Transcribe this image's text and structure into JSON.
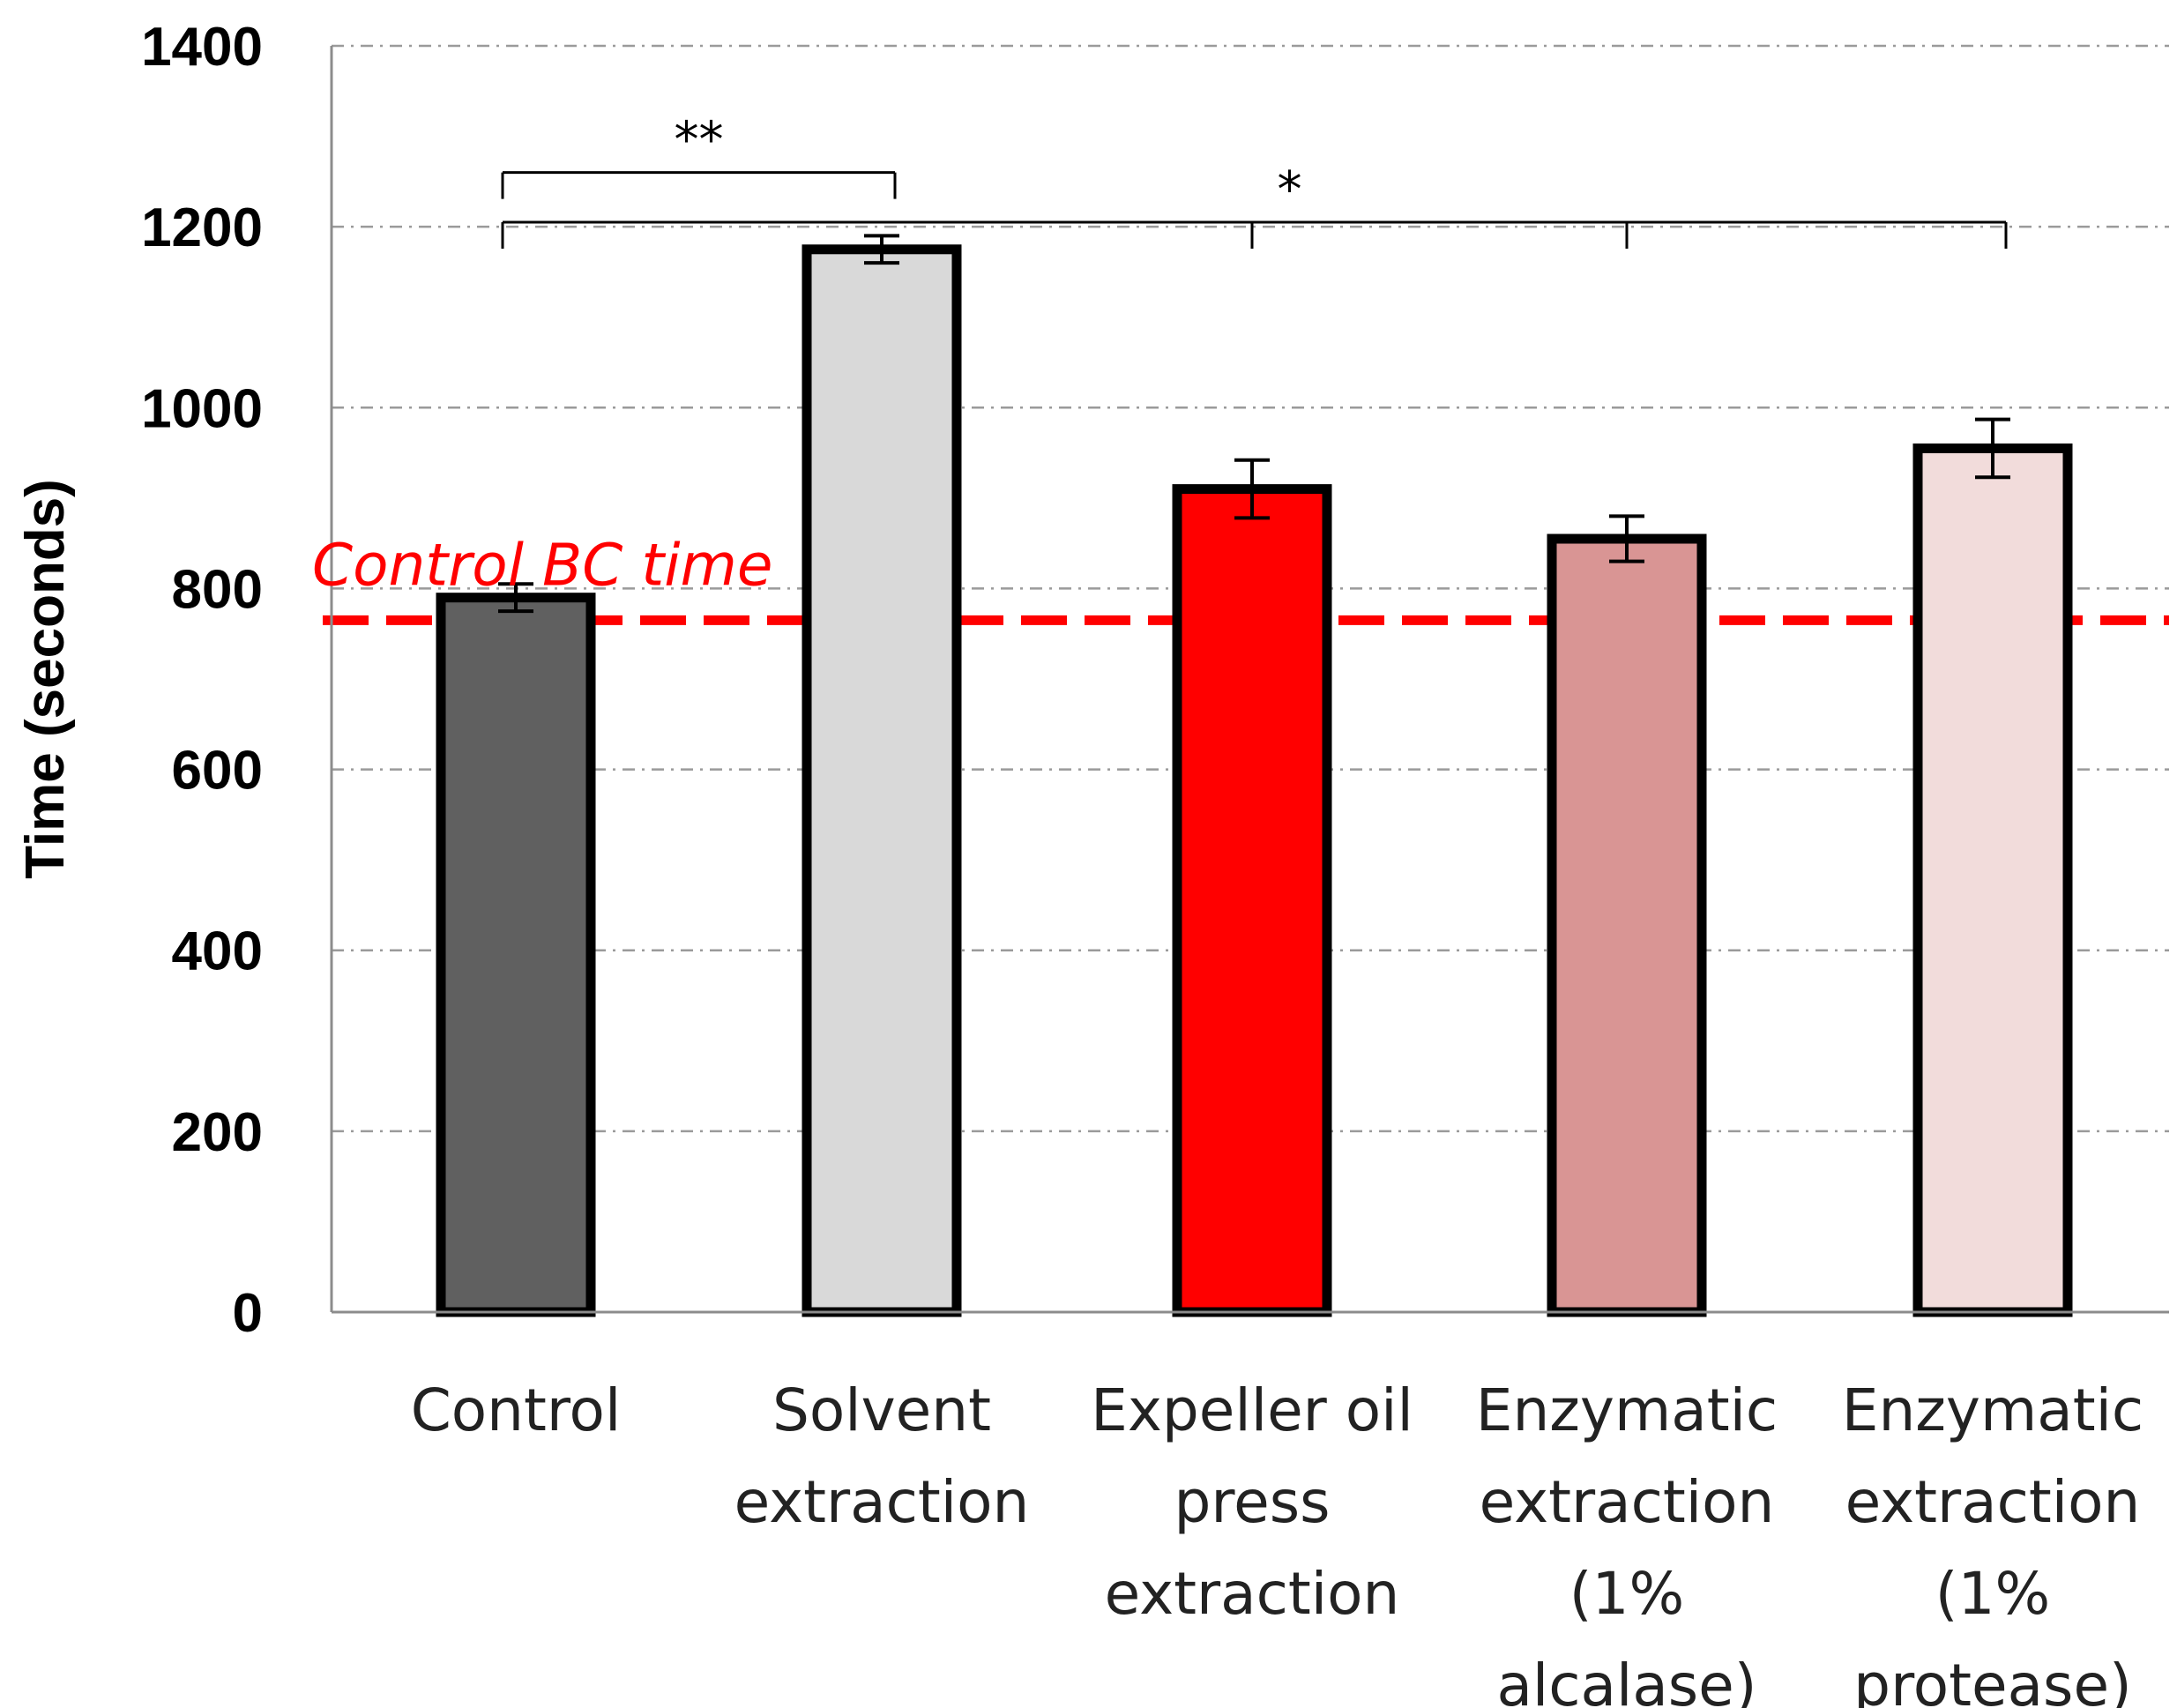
{
  "chart_data": {
    "type": "bar",
    "title": "",
    "xlabel": "",
    "ylabel": "Time (seconds)",
    "ylim": [
      0,
      1400
    ],
    "yticks": [
      0,
      200,
      400,
      600,
      800,
      1000,
      1200,
      1400
    ],
    "grid": true,
    "categories": [
      {
        "lines": [
          "Control"
        ]
      },
      {
        "lines": [
          "Solvent",
          "extraction"
        ]
      },
      {
        "lines": [
          "Expeller oil",
          "press",
          "extraction"
        ]
      },
      {
        "lines": [
          "Enzymatic",
          "extraction",
          "(1%",
          "alcalase)"
        ]
      },
      {
        "lines": [
          "Enzymatic",
          "extraction",
          "(1%",
          "protease)"
        ]
      }
    ],
    "values": [
      790,
      1175,
      910,
      855,
      955
    ],
    "errors": [
      15,
      15,
      32,
      25,
      32
    ],
    "colors": [
      "#606060",
      "#d9d9d9",
      "#ff0000",
      "#d99594",
      "#f2dcdb"
    ],
    "reference_line": {
      "label": "Control BC time",
      "value": 765,
      "color": "#ff0000"
    },
    "significance": [
      {
        "label": "**",
        "from": 0,
        "to": 1,
        "level": 1260
      },
      {
        "label": "*",
        "from": 0,
        "to": 4,
        "level": 1205,
        "ticks": [
          0,
          2,
          3,
          4
        ]
      }
    ]
  }
}
